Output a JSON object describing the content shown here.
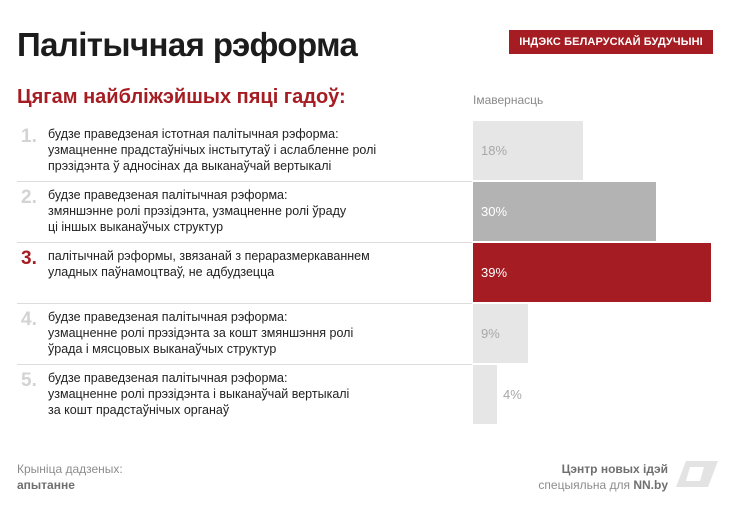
{
  "header": {
    "title": "Палітычная рэформа",
    "badge": "ІНДЭКС БЕЛАРУСКАЙ БУДУЧЫНІ",
    "subtitle": "Цягам найбліжэйшых пяці гадоў:"
  },
  "colors": {
    "accent": "#a51d22",
    "bar_default": "#e6e6e6",
    "bar_secondary": "#b3b3b3"
  },
  "chart_data": {
    "type": "bar",
    "orientation": "horizontal",
    "value_axis_label": "Імавернасць",
    "categories": [
      {
        "num": "1.",
        "lines": [
          "будзе праведзеная істотная палітычная рэформа:",
          "узмацненне прадстаўнічых інстытутаў і аслабленне ролі",
          "прэзідэнта ў адносінах да выканаўчай вертыкалі"
        ]
      },
      {
        "num": "2.",
        "lines": [
          "будзе праведзеная палітычная рэформа:",
          "змяншэнне ролі прэзідэнта, узмацненне ролі ўраду",
          "ці іншых выканаўчых структур"
        ]
      },
      {
        "num": "3.",
        "lines": [
          "палітычнай рэформы, звязанай з пераразмеркаваннем",
          "уладных паўнамоцтваў, не адбудзецца"
        ]
      },
      {
        "num": "4.",
        "lines": [
          "будзе праведзеная палітычная рэформа:",
          "узмацненне ролі прэзідэнта за кошт змяншэння ролі",
          "ўрада і мясцовых выканаўчых структур"
        ]
      },
      {
        "num": "5.",
        "lines": [
          "будзе праведзеная палітычная рэформа:",
          "узмацненне ролі прэзідэнта і выканаўчай вертыкалі",
          "за кошт прадстаўнічых органаў"
        ]
      }
    ],
    "values": [
      18,
      30,
      39,
      9,
      4
    ],
    "value_labels": [
      "18%",
      "30%",
      "39%",
      "9%",
      "4%"
    ],
    "highlight_index": 2
  },
  "footer": {
    "source_label": "Крыніца дадзеных:",
    "source_value": "апытанне",
    "credit_line1": "Цэнтр новых ідэй",
    "credit_line2_prefix": "спецыяльна для ",
    "credit_line2_site": "NN.by"
  }
}
